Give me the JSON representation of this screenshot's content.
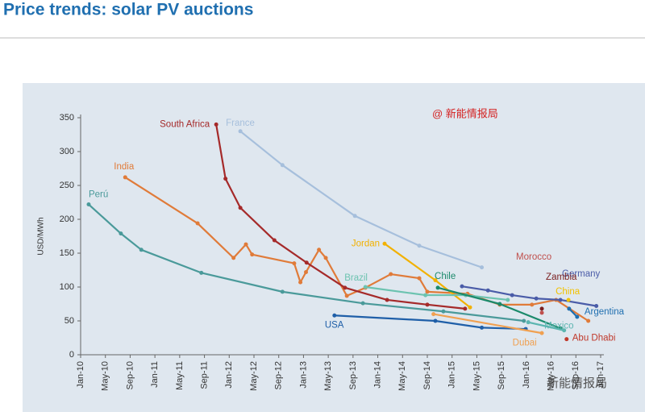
{
  "chart_data": {
    "type": "line",
    "title": "Price trends: solar PV auctions",
    "y_label": "USD/MWh",
    "annotations": [
      "@ 新能情报局",
      "新能情报局"
    ],
    "xlim": [
      0,
      84
    ],
    "xticks": [
      {
        "value": 0,
        "label": "Jan-10"
      },
      {
        "value": 4,
        "label": "May-10"
      },
      {
        "value": 8,
        "label": "Sep-10"
      },
      {
        "value": 12,
        "label": "Jan-11"
      },
      {
        "value": 16,
        "label": "May-11"
      },
      {
        "value": 20,
        "label": "Sep-11"
      },
      {
        "value": 24,
        "label": "Jan-12"
      },
      {
        "value": 28,
        "label": "May-12"
      },
      {
        "value": 32,
        "label": "Sep-12"
      },
      {
        "value": 36,
        "label": "Jan-13"
      },
      {
        "value": 40,
        "label": "May-13"
      },
      {
        "value": 44,
        "label": "Sep-13"
      },
      {
        "value": 48,
        "label": "Jan-14"
      },
      {
        "value": 52,
        "label": "May-14"
      },
      {
        "value": 56,
        "label": "Sep-14"
      },
      {
        "value": 60,
        "label": "Jan-15"
      },
      {
        "value": 64,
        "label": "May-15"
      },
      {
        "value": 68,
        "label": "Sep-15"
      },
      {
        "value": 72,
        "label": "Jan-16"
      },
      {
        "value": 76,
        "label": "May-16"
      },
      {
        "value": 80,
        "label": "Sep-16"
      },
      {
        "value": 84,
        "label": "Jan-17"
      }
    ],
    "ylim": [
      0,
      350
    ],
    "yticks": [
      0,
      50,
      100,
      150,
      200,
      250,
      300,
      350
    ],
    "series": [
      {
        "name": "Perú",
        "color": "#4a9a9a",
        "x": [
          1.3,
          6.5,
          9.8,
          19.5,
          32.6,
          45.6,
          58.6,
          71.6
        ],
        "values": [
          222,
          179,
          155,
          121,
          93,
          76,
          64,
          50
        ]
      },
      {
        "name": "India",
        "color": "#e07b39",
        "x": [
          7.2,
          18.9,
          24.7,
          26.7,
          27.7,
          34.5,
          35.5,
          36.4,
          38.5,
          39.6,
          43,
          46,
          50.1,
          54.7,
          56,
          62.5,
          67.7,
          72.9,
          76.8,
          82
        ],
        "values": [
          262,
          194,
          143,
          163,
          148,
          135,
          107,
          122,
          155,
          143,
          87,
          99,
          119,
          113,
          93,
          90,
          74,
          74,
          81,
          50
        ]
      },
      {
        "name": "South Africa",
        "color": "#a52a2a",
        "x": [
          21.9,
          23.4,
          25.8,
          31.3,
          36.5,
          42.7,
          49.5,
          56,
          62.1
        ],
        "values": [
          340,
          260,
          217,
          169,
          136,
          99,
          81,
          74,
          68
        ]
      },
      {
        "name": "France",
        "color": "#a6bfdc",
        "x": [
          25.8,
          32.6,
          44.3,
          54.7,
          64.8
        ],
        "values": [
          330,
          280,
          205,
          161,
          129
        ]
      },
      {
        "name": "Jordan",
        "color": "#f2b100",
        "x": [
          49.1,
          57.3,
          62.9
        ],
        "values": [
          164,
          110,
          70
        ]
      },
      {
        "name": "Brazil",
        "color": "#6cc3b0",
        "x": [
          46,
          55.7,
          62.2,
          69
        ],
        "values": [
          100,
          88,
          88,
          81
        ]
      },
      {
        "name": "Chile",
        "color": "#1b8a6b",
        "x": [
          57.7,
          67.7,
          77.5
        ],
        "values": [
          99,
          75,
          39
        ]
      },
      {
        "name": "USA",
        "color": "#1f5fa8",
        "x": [
          41,
          57.3,
          64.8,
          71.9
        ],
        "values": [
          58,
          50,
          40,
          38
        ]
      },
      {
        "name": "Dubai",
        "color": "#f0a050",
        "x": [
          57,
          74.5
        ],
        "values": [
          60,
          32
        ]
      },
      {
        "name": "Germany",
        "color": "#4a5ca8",
        "x": [
          61.6,
          65.8,
          69.7,
          73.6,
          77.5,
          83.3
        ],
        "values": [
          101,
          95,
          88,
          83,
          81,
          72
        ]
      },
      {
        "name": "Argentina",
        "color": "#1f6fb0",
        "x": [
          78.9,
          80.2
        ],
        "values": [
          68,
          56
        ]
      },
      {
        "name": "Mexico",
        "color": "#5bb5b0",
        "x": [
          72.3,
          78.1
        ],
        "values": [
          48,
          36
        ]
      },
      {
        "name": "Morocco",
        "color": "#c0504d",
        "x": [
          74.5
        ],
        "values": [
          62
        ]
      },
      {
        "name": "Zambia",
        "color": "#7a1f1f",
        "x": [
          74.5
        ],
        "values": [
          68
        ]
      },
      {
        "name": "China",
        "color": "#f2c200",
        "x": [
          78.8
        ],
        "values": [
          81
        ]
      },
      {
        "name": "Abu Dhabi",
        "color": "#c0392b",
        "x": [
          78.5
        ],
        "values": [
          23
        ]
      }
    ]
  }
}
